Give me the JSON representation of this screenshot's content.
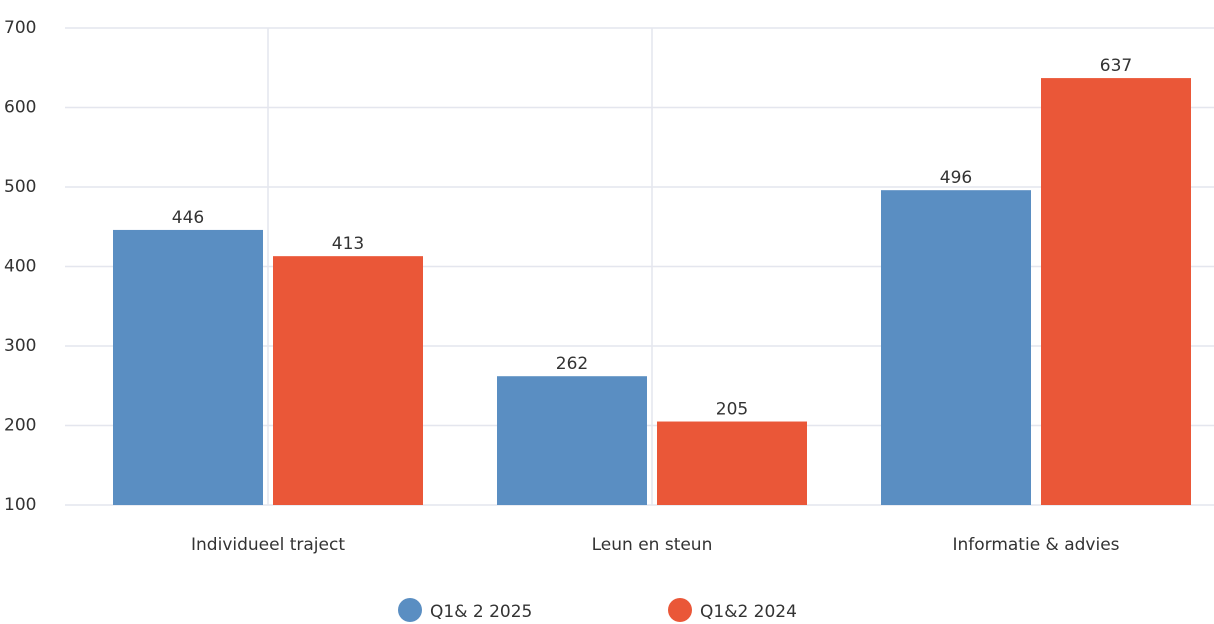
{
  "chart_data": {
    "type": "bar",
    "categories": [
      "Individueel traject",
      "Leun en steun",
      "Informatie & advies"
    ],
    "series": [
      {
        "name": "Q1& 2 2025",
        "color": "#5a8ec2",
        "values": [
          446,
          262,
          496
        ]
      },
      {
        "name": "Q1&2 2024",
        "color": "#ea5738",
        "values": [
          413,
          205,
          637
        ]
      }
    ],
    "ylim": [
      100,
      700
    ],
    "yticks": [
      100,
      200,
      300,
      400,
      500,
      600,
      700
    ],
    "grid": true,
    "legend": "bottom"
  }
}
